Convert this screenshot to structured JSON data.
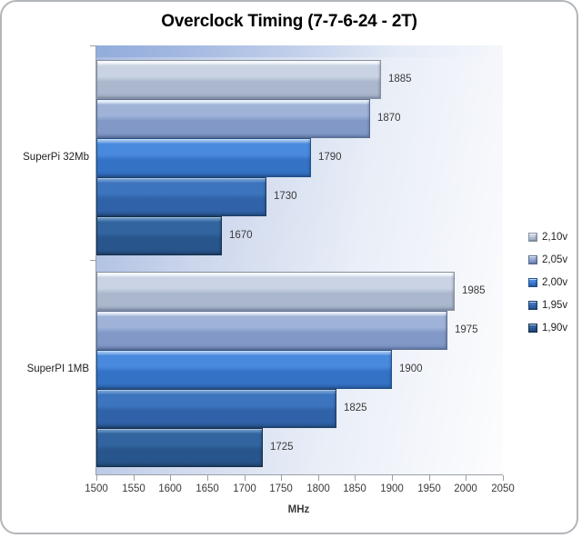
{
  "title": "Overclock Timing (7-7-6-24 - 2T)",
  "chart_data": {
    "type": "bar",
    "orientation": "horizontal",
    "title": "Overclock Timing (7-7-6-24 - 2T)",
    "xlabel": "MHz",
    "ylabel": "",
    "xlim": [
      1500,
      2050
    ],
    "xticks": [
      1500,
      1550,
      1600,
      1650,
      1700,
      1750,
      1800,
      1850,
      1900,
      1950,
      2000,
      2050
    ],
    "grid": false,
    "legend_position": "right",
    "categories": [
      "SuperPi 32Mb",
      "SuperPI 1MB"
    ],
    "series": [
      {
        "name": "2,10v",
        "values": [
          1885,
          1985
        ],
        "colors": {
          "hi": "#f5f8fc",
          "light": "#c9d3e3",
          "mid": "#aab7cd",
          "dark": "#97a6c0",
          "border": "#87909f"
        }
      },
      {
        "name": "2,05v",
        "values": [
          1870,
          1975
        ],
        "colors": {
          "hi": "#e2eaf7",
          "light": "#9fb3d9",
          "mid": "#8299c7",
          "dark": "#7089bb",
          "border": "#5a6d95"
        }
      },
      {
        "name": "2,00v",
        "values": [
          1790,
          1900
        ],
        "colors": {
          "hi": "#9cc1ee",
          "light": "#498ade",
          "mid": "#3472c6",
          "dark": "#2c64b0",
          "border": "#215089"
        }
      },
      {
        "name": "1,95v",
        "values": [
          1730,
          1825
        ],
        "colors": {
          "hi": "#6f9bd2",
          "light": "#3c74bd",
          "mid": "#2f62a8",
          "dark": "#285590",
          "border": "#1c3f69"
        }
      },
      {
        "name": "1,90v",
        "values": [
          1670,
          1725
        ],
        "colors": {
          "hi": "#6290c0",
          "light": "#32659f",
          "mid": "#28558c",
          "dark": "#224876",
          "border": "#16304d"
        }
      }
    ]
  },
  "plot_background": {
    "left_color": "#a8bbe0",
    "right_color": "#fdfdfe"
  },
  "axis_color": "#9aa0a8"
}
